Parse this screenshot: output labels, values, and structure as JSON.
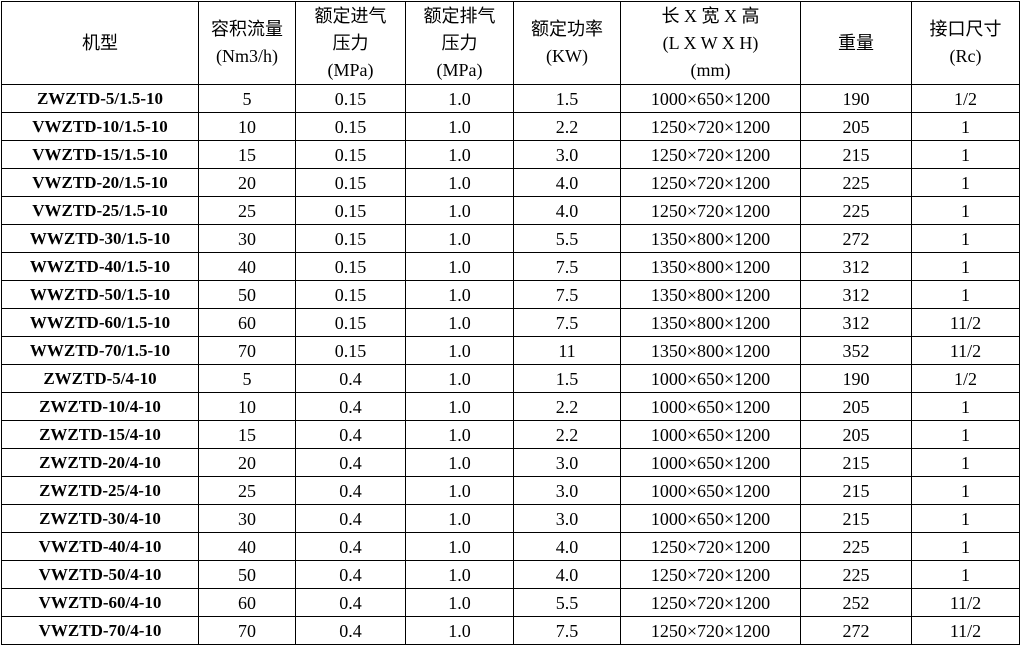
{
  "headers": [
    [
      "机型"
    ],
    [
      "容积流量",
      "(Nm3/h)"
    ],
    [
      "额定进气",
      "压力",
      "(MPa)"
    ],
    [
      "额定排气",
      "压力",
      "(MPa)"
    ],
    [
      "额定功率",
      "(KW)"
    ],
    [
      "长 X 宽 X 高",
      "(L X W X H)",
      "(mm)"
    ],
    [
      "重量"
    ],
    [
      "接口尺寸",
      "(Rc)"
    ]
  ],
  "rows": [
    [
      "ZWZTD-5/1.5-10",
      "5",
      "0.15",
      "1.0",
      "1.5",
      "1000×650×1200",
      "190",
      "1/2"
    ],
    [
      "VWZTD-10/1.5-10",
      "10",
      "0.15",
      "1.0",
      "2.2",
      "1250×720×1200",
      "205",
      "1"
    ],
    [
      "VWZTD-15/1.5-10",
      "15",
      "0.15",
      "1.0",
      "3.0",
      "1250×720×1200",
      "215",
      "1"
    ],
    [
      "VWZTD-20/1.5-10",
      "20",
      "0.15",
      "1.0",
      "4.0",
      "1250×720×1200",
      "225",
      "1"
    ],
    [
      "VWZTD-25/1.5-10",
      "25",
      "0.15",
      "1.0",
      "4.0",
      "1250×720×1200",
      "225",
      "1"
    ],
    [
      "WWZTD-30/1.5-10",
      "30",
      "0.15",
      "1.0",
      "5.5",
      "1350×800×1200",
      "272",
      "1"
    ],
    [
      "WWZTD-40/1.5-10",
      "40",
      "0.15",
      "1.0",
      "7.5",
      "1350×800×1200",
      "312",
      "1"
    ],
    [
      "WWZTD-50/1.5-10",
      "50",
      "0.15",
      "1.0",
      "7.5",
      "1350×800×1200",
      "312",
      "1"
    ],
    [
      "WWZTD-60/1.5-10",
      "60",
      "0.15",
      "1.0",
      "7.5",
      "1350×800×1200",
      "312",
      "11/2"
    ],
    [
      "WWZTD-70/1.5-10",
      "70",
      "0.15",
      "1.0",
      "11",
      "1350×800×1200",
      "352",
      "11/2"
    ],
    [
      "ZWZTD-5/4-10",
      "5",
      "0.4",
      "1.0",
      "1.5",
      "1000×650×1200",
      "190",
      "1/2"
    ],
    [
      "ZWZTD-10/4-10",
      "10",
      "0.4",
      "1.0",
      "2.2",
      "1000×650×1200",
      "205",
      "1"
    ],
    [
      "ZWZTD-15/4-10",
      "15",
      "0.4",
      "1.0",
      "2.2",
      "1000×650×1200",
      "205",
      "1"
    ],
    [
      "ZWZTD-20/4-10",
      "20",
      "0.4",
      "1.0",
      "3.0",
      "1000×650×1200",
      "215",
      "1"
    ],
    [
      "ZWZTD-25/4-10",
      "25",
      "0.4",
      "1.0",
      "3.0",
      "1000×650×1200",
      "215",
      "1"
    ],
    [
      "ZWZTD-30/4-10",
      "30",
      "0.4",
      "1.0",
      "3.0",
      "1000×650×1200",
      "215",
      "1"
    ],
    [
      "VWZTD-40/4-10",
      "40",
      "0.4",
      "1.0",
      "4.0",
      "1250×720×1200",
      "225",
      "1"
    ],
    [
      "VWZTD-50/4-10",
      "50",
      "0.4",
      "1.0",
      "4.0",
      "1250×720×1200",
      "225",
      "1"
    ],
    [
      "VWZTD-60/4-10",
      "60",
      "0.4",
      "1.0",
      "5.5",
      "1250×720×1200",
      "252",
      "11/2"
    ],
    [
      "VWZTD-70/4-10",
      "70",
      "0.4",
      "1.0",
      "7.5",
      "1250×720×1200",
      "272",
      "11/2"
    ]
  ]
}
